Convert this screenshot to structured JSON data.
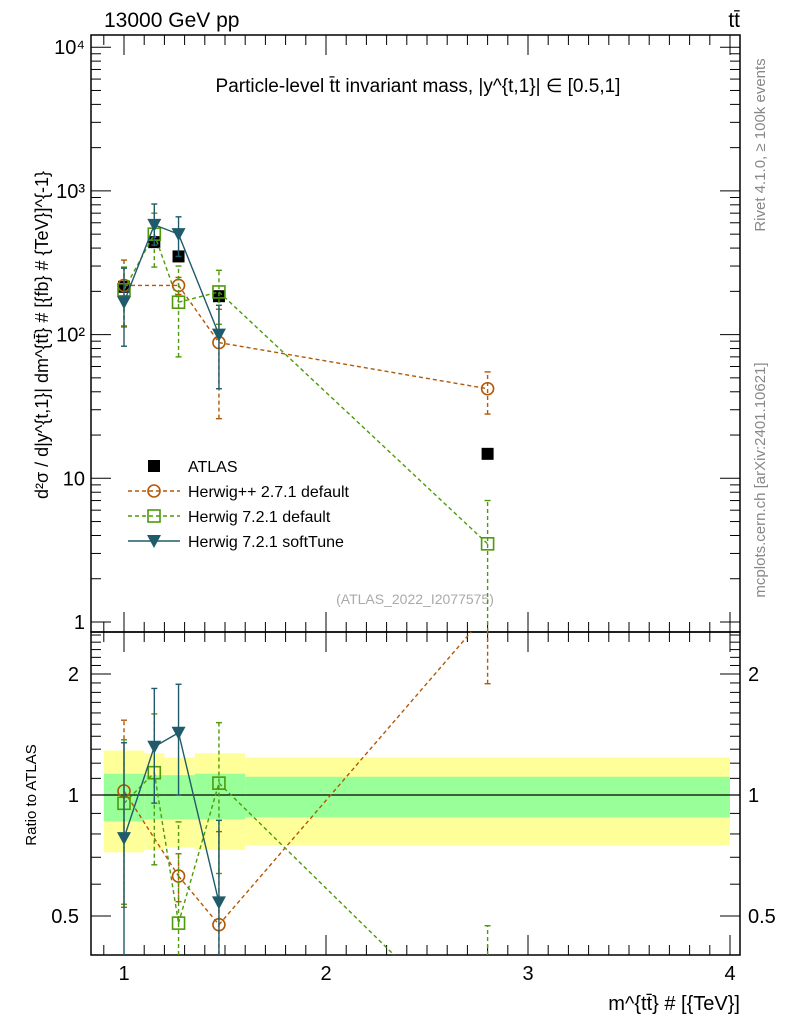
{
  "header": {
    "energy_label": "13000 GeV pp",
    "process_label": "tt̄"
  },
  "side_labels": {
    "rivet": "Rivet 4.1.0, ≥ 100k events",
    "mcplots": "mcplots.cern.ch [arXiv:2401.10621]"
  },
  "chart_data": [
    {
      "type": "scatter",
      "title": "Particle-level t̄t invariant mass, |y^{t,1}| ∈ [0.5,1]",
      "ylabel": "d²σ / d|y^{t,1}| dm^{tt̄} # [{fb} # {TeV}]^{-1}",
      "watermark": "(ATLAS_2022_I2077575)",
      "yscale": "log",
      "xlim": [
        0.84,
        4.06
      ],
      "ylim": [
        0.85,
        12000
      ],
      "yticks": [
        {
          "v": 1,
          "label": "1"
        },
        {
          "v": 10,
          "label": "10"
        },
        {
          "v": 100,
          "label": "10²"
        },
        {
          "v": 1000,
          "label": "10³"
        },
        {
          "v": 10000,
          "label": "10⁴"
        }
      ],
      "legend_position": "center-left",
      "x": [
        1.0,
        1.15,
        1.27,
        1.47,
        2.8
      ],
      "series": [
        {
          "name": "ATLAS",
          "color": "#000000",
          "marker": "square-filled",
          "line": "none",
          "values": [
            215,
            440,
            350,
            185,
            14.8
          ]
        },
        {
          "name": "Herwig++ 2.7.1 default",
          "color": "#b35806",
          "marker": "circle-open",
          "line": "dashed",
          "values": [
            220,
            null,
            220,
            88,
            42
          ],
          "lo": [
            113,
            null,
            190,
            26,
            28
          ],
          "hi": [
            330,
            null,
            250,
            150,
            55
          ]
        },
        {
          "name": "Herwig 7.2.1 default",
          "color": "#4d9a0a",
          "marker": "square-open",
          "line": "dashed",
          "values": [
            205,
            500,
            168,
            198,
            3.5
          ],
          "lo": [
            115,
            295,
            70,
            118,
            0.5
          ],
          "hi": [
            295,
            700,
            300,
            280,
            7
          ]
        },
        {
          "name": "Herwig 7.2.1 softTune",
          "color": "#1f5b6b",
          "marker": "triangle-down",
          "line": "solid",
          "values": [
            168,
            580,
            500,
            100,
            null
          ],
          "lo": [
            83,
            420,
            350,
            42,
            null
          ],
          "hi": [
            290,
            810,
            660,
            160,
            null
          ]
        }
      ]
    },
    {
      "type": "scatter",
      "ylabel": "Ratio to ATLAS",
      "xlabel": "m^{tt̄} # [{TeV}]",
      "yscale": "log",
      "ylim": [
        0.4,
        2.54
      ],
      "yticks": [
        {
          "v": 0.5,
          "label": "0.5"
        },
        {
          "v": 1,
          "label": "1"
        },
        {
          "v": 2,
          "label": "2"
        }
      ],
      "xticks": [
        {
          "v": 1,
          "label": "1"
        },
        {
          "v": 2,
          "label": "2"
        },
        {
          "v": 3,
          "label": "3"
        },
        {
          "v": 4,
          "label": "4"
        }
      ],
      "uncertainty_bands": {
        "bin_edges": [
          0.9,
          1.1,
          1.2,
          1.35,
          1.6,
          4.0
        ],
        "total": {
          "color": "#ffff99",
          "lo": [
            0.72,
            0.73,
            0.74,
            0.73,
            0.75
          ],
          "hi": [
            1.29,
            1.27,
            1.24,
            1.27,
            1.24
          ]
        },
        "stat": {
          "color": "#99ff99",
          "lo": [
            0.86,
            0.87,
            0.87,
            0.87,
            0.88
          ],
          "hi": [
            1.13,
            1.12,
            1.12,
            1.13,
            1.11
          ]
        }
      }
    }
  ]
}
